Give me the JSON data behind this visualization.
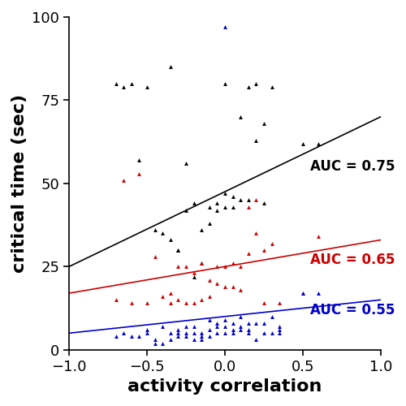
{
  "title": "",
  "xlabel": "activity correlation",
  "ylabel": "critical time (sec)",
  "xlim": [
    -1,
    1
  ],
  "ylim": [
    0,
    100
  ],
  "xticks": [
    -1,
    -0.5,
    0,
    0.5,
    1
  ],
  "yticks": [
    0,
    25,
    50,
    75,
    100
  ],
  "marker": "^",
  "markersize": 3.5,
  "groups": [
    {
      "label": "AUC = 0.75",
      "color": "#000000",
      "line_x": [
        -1,
        1
      ],
      "line_y": [
        25,
        70
      ],
      "points_x": [
        -0.7,
        -0.65,
        -0.6,
        -0.55,
        -0.5,
        -0.45,
        -0.4,
        -0.35,
        -0.35,
        -0.3,
        -0.3,
        -0.25,
        -0.25,
        -0.2,
        -0.2,
        -0.15,
        -0.15,
        -0.1,
        -0.1,
        -0.05,
        -0.05,
        0.0,
        0.0,
        0.0,
        0.05,
        0.05,
        0.1,
        0.1,
        0.15,
        0.15,
        0.2,
        0.2,
        0.25,
        0.25,
        0.3,
        0.5,
        0.6
      ],
      "points_y": [
        80,
        79,
        80,
        57,
        79,
        36,
        35,
        33,
        85,
        30,
        30,
        56,
        42,
        44,
        22,
        36,
        26,
        43,
        38,
        44,
        42,
        47,
        43,
        80,
        46,
        43,
        45,
        70,
        79,
        45,
        63,
        80,
        68,
        44,
        79,
        62,
        62
      ]
    },
    {
      "label": "AUC = 0.65",
      "color": "#cc0000",
      "line_x": [
        -1,
        1
      ],
      "line_y": [
        17,
        33
      ],
      "points_x": [
        -0.7,
        -0.65,
        -0.6,
        -0.55,
        -0.5,
        -0.45,
        -0.4,
        -0.35,
        -0.35,
        -0.3,
        -0.3,
        -0.25,
        -0.25,
        -0.2,
        -0.2,
        -0.15,
        -0.15,
        -0.1,
        -0.1,
        -0.05,
        -0.05,
        0.0,
        0.0,
        0.05,
        0.05,
        0.1,
        0.1,
        0.15,
        0.15,
        0.2,
        0.2,
        0.25,
        0.25,
        0.3,
        0.35,
        0.5,
        0.6
      ],
      "points_y": [
        15,
        51,
        14,
        53,
        14,
        28,
        16,
        14,
        17,
        15,
        25,
        25,
        14,
        23,
        14,
        26,
        15,
        21,
        16,
        25,
        20,
        25,
        19,
        26,
        19,
        25,
        18,
        43,
        29,
        45,
        35,
        30,
        14,
        32,
        14,
        17,
        34
      ]
    },
    {
      "label": "AUC = 0.55",
      "color": "#0000cc",
      "line_x": [
        -1,
        1
      ],
      "line_y": [
        5,
        15
      ],
      "points_x": [
        -0.7,
        -0.65,
        -0.6,
        -0.55,
        -0.5,
        -0.45,
        -0.4,
        -0.35,
        -0.35,
        -0.3,
        -0.3,
        -0.3,
        -0.25,
        -0.25,
        -0.25,
        -0.2,
        -0.2,
        -0.2,
        -0.15,
        -0.15,
        -0.15,
        -0.1,
        -0.1,
        -0.1,
        -0.05,
        -0.05,
        -0.05,
        0.0,
        0.0,
        0.0,
        0.0,
        0.05,
        0.05,
        0.05,
        0.1,
        0.1,
        0.1,
        0.15,
        0.15,
        0.15,
        0.2,
        0.2,
        0.25,
        0.25,
        0.3,
        0.3,
        0.35,
        0.35,
        0.35,
        0.5,
        0.6,
        -0.4,
        -0.45,
        -0.5
      ],
      "points_y": [
        4,
        5,
        4,
        4,
        5,
        2,
        7,
        3,
        5,
        5,
        6,
        4,
        5,
        4,
        7,
        7,
        5,
        3,
        5,
        3,
        4,
        9,
        6,
        4,
        8,
        5,
        7,
        9,
        7,
        5,
        97,
        8,
        6,
        5,
        10,
        7,
        6,
        8,
        6,
        5,
        8,
        3,
        5,
        8,
        10,
        5,
        5,
        7,
        6,
        17,
        17,
        2,
        3,
        6
      ]
    }
  ],
  "label_positions": {
    "AUC = 0.75": [
      0.55,
      55
    ],
    "AUC = 0.65": [
      0.55,
      27
    ],
    "AUC = 0.55": [
      0.55,
      12
    ]
  },
  "xlabel_fontsize": 16,
  "ylabel_fontsize": 16,
  "tick_fontsize": 13,
  "label_fontsize": 12
}
